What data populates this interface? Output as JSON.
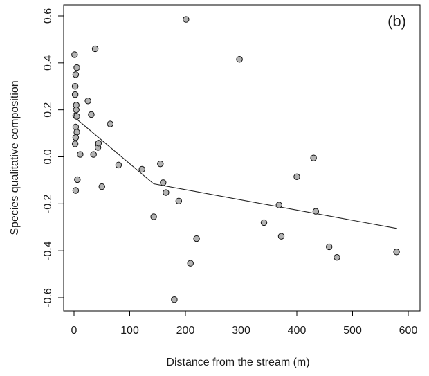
{
  "chart_data": {
    "type": "scatter",
    "panel_label": "(b)",
    "xlabel": "Distance from the stream (m)",
    "ylabel": "Species qualitative composition",
    "xlim": [
      0,
      600
    ],
    "ylim": [
      -0.6,
      0.6
    ],
    "x_ticks": [
      0,
      100,
      200,
      300,
      400,
      500,
      600
    ],
    "y_ticks": [
      -0.6,
      -0.4,
      -0.2,
      0.0,
      0.2,
      0.4,
      0.6
    ],
    "x_tick_labels": [
      "0",
      "100",
      "200",
      "300",
      "400",
      "500",
      "600"
    ],
    "y_tick_labels": [
      "-0.6",
      "-0.4",
      "-0.2",
      "0.0",
      "0.2",
      "0.4",
      "0.6"
    ],
    "grid": false,
    "point_color": "#b3b3b3",
    "series": [
      {
        "points": [
          [
            1,
            0.435
          ],
          [
            5,
            0.38
          ],
          [
            3,
            0.35
          ],
          [
            2,
            0.3
          ],
          [
            2,
            0.265
          ],
          [
            4,
            0.22
          ],
          [
            4,
            0.2
          ],
          [
            3,
            0.175
          ],
          [
            5,
            0.172
          ],
          [
            3,
            0.127
          ],
          [
            5,
            0.105
          ],
          [
            3,
            0.082
          ],
          [
            2,
            0.055
          ],
          [
            6,
            -0.097
          ],
          [
            3,
            -0.143
          ],
          [
            11,
            0.01
          ],
          [
            25,
            0.238
          ],
          [
            31,
            0.18
          ],
          [
            35,
            0.01
          ],
          [
            38,
            0.46
          ],
          [
            43,
            0.04
          ],
          [
            44,
            0.058
          ],
          [
            50,
            -0.127
          ],
          [
            65,
            0.14
          ],
          [
            80,
            -0.035
          ],
          [
            122,
            -0.053
          ],
          [
            143,
            -0.255
          ],
          [
            155,
            -0.03
          ],
          [
            160,
            -0.11
          ],
          [
            165,
            -0.152
          ],
          [
            180,
            -0.608
          ],
          [
            188,
            -0.188
          ],
          [
            201,
            0.585
          ],
          [
            209,
            -0.453
          ],
          [
            220,
            -0.348
          ],
          [
            297,
            0.415
          ],
          [
            341,
            -0.28
          ],
          [
            368,
            -0.205
          ],
          [
            372,
            -0.338
          ],
          [
            400,
            -0.085
          ],
          [
            430,
            -0.005
          ],
          [
            434,
            -0.232
          ],
          [
            458,
            -0.383
          ],
          [
            472,
            -0.428
          ],
          [
            579,
            -0.405
          ]
        ]
      }
    ],
    "fit_line": {
      "type": "piecewise-linear",
      "points": [
        [
          0,
          0.17
        ],
        [
          143,
          -0.115
        ],
        [
          580,
          -0.305
        ]
      ]
    }
  }
}
